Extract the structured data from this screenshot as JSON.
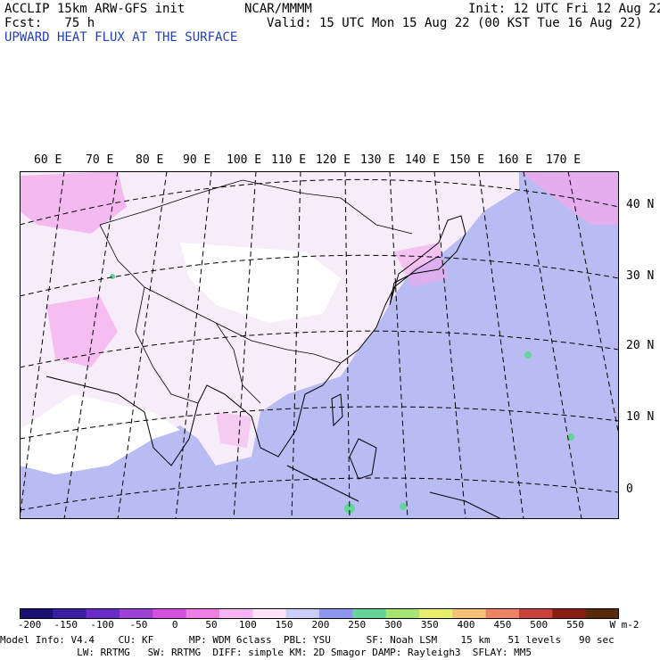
{
  "header": {
    "model_line": "ACCLIP 15km ARW-GFS init",
    "forecast_line": "Fcst:   75 h",
    "center": "NCAR/MMMM",
    "init": "Init: 12 UTC Fri 12 Aug 22",
    "valid": "Valid: 15 UTC Mon 15 Aug 22 (00 KST Tue 16 Aug 22)",
    "field_title": "UPWARD HEAT FLUX AT THE SURFACE"
  },
  "map": {
    "lon_labels": [
      "60 E",
      "70 E",
      "80 E",
      "90 E",
      "100 E",
      "110 E",
      "120 E",
      "130 E",
      "140 E",
      "150 E",
      "160 E",
      "170 E"
    ],
    "lat_labels": [
      "40 N",
      "30 N",
      "20 N",
      "10 N",
      "0"
    ]
  },
  "colorbar": {
    "tick_labels": [
      "-200",
      "-150",
      "-100",
      "-50",
      "0",
      "50",
      "100",
      "150",
      "200",
      "250",
      "300",
      "350",
      "400",
      "450",
      "500",
      "550"
    ],
    "units": "W m-2",
    "colors": [
      "#1a0f73",
      "#3b1fa3",
      "#6a2bc9",
      "#a13fd9",
      "#d64fe0",
      "#f07ce8",
      "#f6b4f2",
      "#fbe3fa",
      "#c9cdf7",
      "#8f96ef",
      "#63d59b",
      "#a7e56e",
      "#e6ee6a",
      "#f5c177",
      "#ee8266",
      "#c8403a",
      "#8c1d12",
      "#5a2a10"
    ]
  },
  "footer": {
    "line1": "Model Info: V4.4    CU: KF      MP: WDM 6class  PBL: YSU      SF: Noah LSM    15 km   51 levels   90 sec",
    "line2": "             LW: RRTMG   SW: RRTMG  DIFF: simple KM: 2D Smagor DAMP: Rayleigh3  SFLAY: MM5"
  }
}
